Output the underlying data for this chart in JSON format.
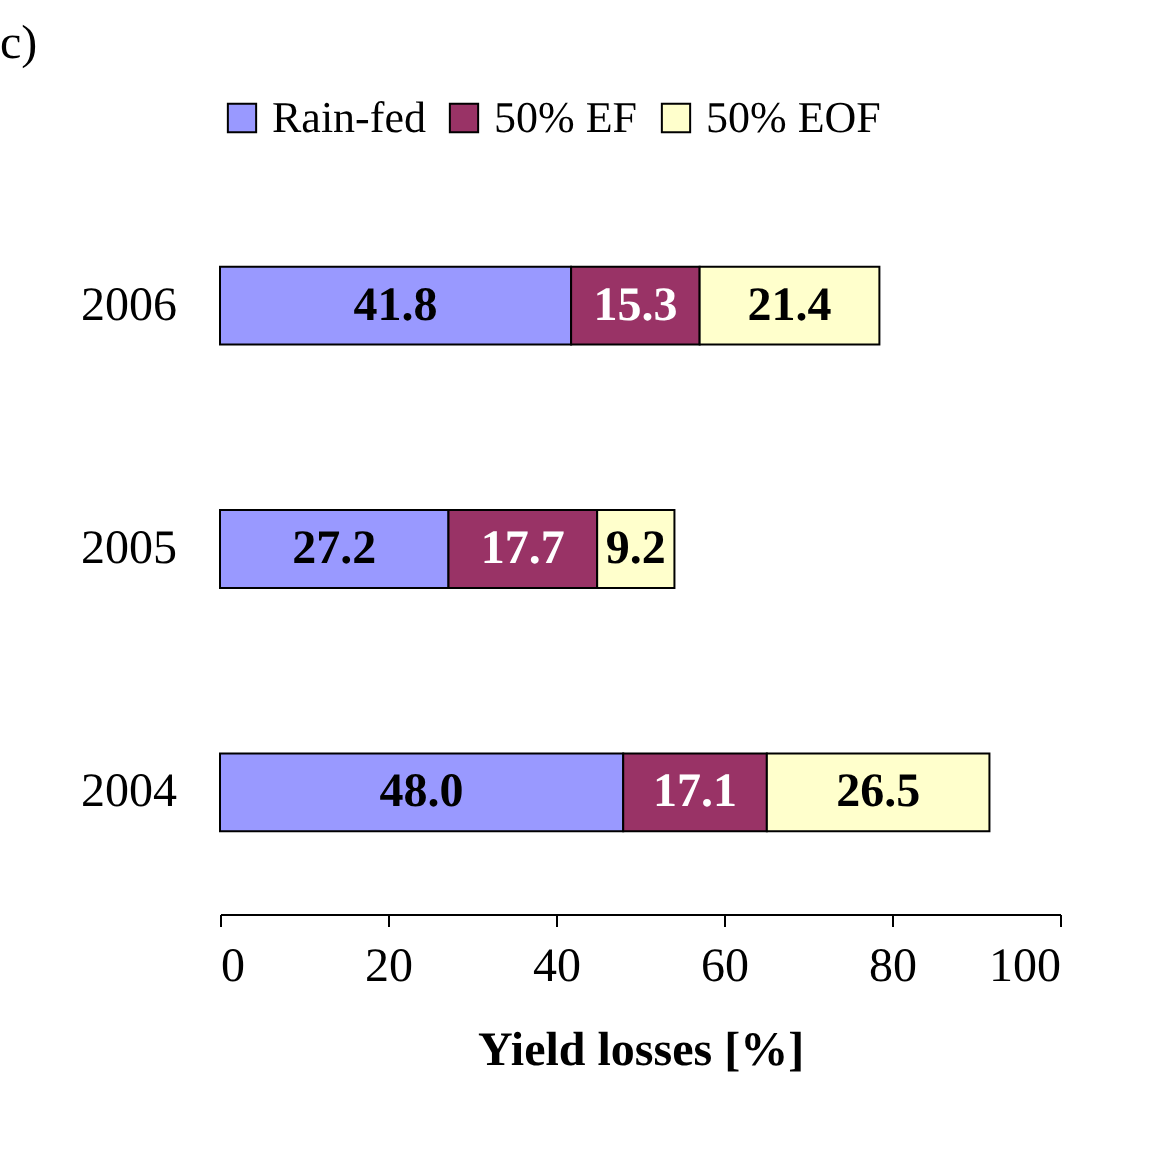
{
  "chart_data": {
    "type": "bar",
    "title": "c)",
    "orientation": "horizontal",
    "stacked": true,
    "categories": [
      "2006",
      "2005",
      "2004"
    ],
    "series": [
      {
        "name": "Rain-fed",
        "color": "#9999ff",
        "values": [
          41.8,
          27.2,
          48.0
        ],
        "value_labels": [
          "41.8",
          "27.2",
          "48.0"
        ]
      },
      {
        "name": "50% EF",
        "color": "#993366",
        "values": [
          15.3,
          17.7,
          17.1
        ],
        "value_labels": [
          "15.3",
          "17.7",
          "17.1"
        ]
      },
      {
        "name": "50% EOF",
        "color": "#ffffcc",
        "values": [
          21.4,
          9.2,
          26.5
        ],
        "value_labels": [
          "21.4",
          "9.2",
          "26.5"
        ]
      }
    ],
    "xlim": [
      0,
      100
    ],
    "xticks": [
      0,
      20,
      40,
      60,
      80,
      100
    ],
    "xlabel": "Yield losses [%]",
    "legend": "top",
    "grid": false
  }
}
